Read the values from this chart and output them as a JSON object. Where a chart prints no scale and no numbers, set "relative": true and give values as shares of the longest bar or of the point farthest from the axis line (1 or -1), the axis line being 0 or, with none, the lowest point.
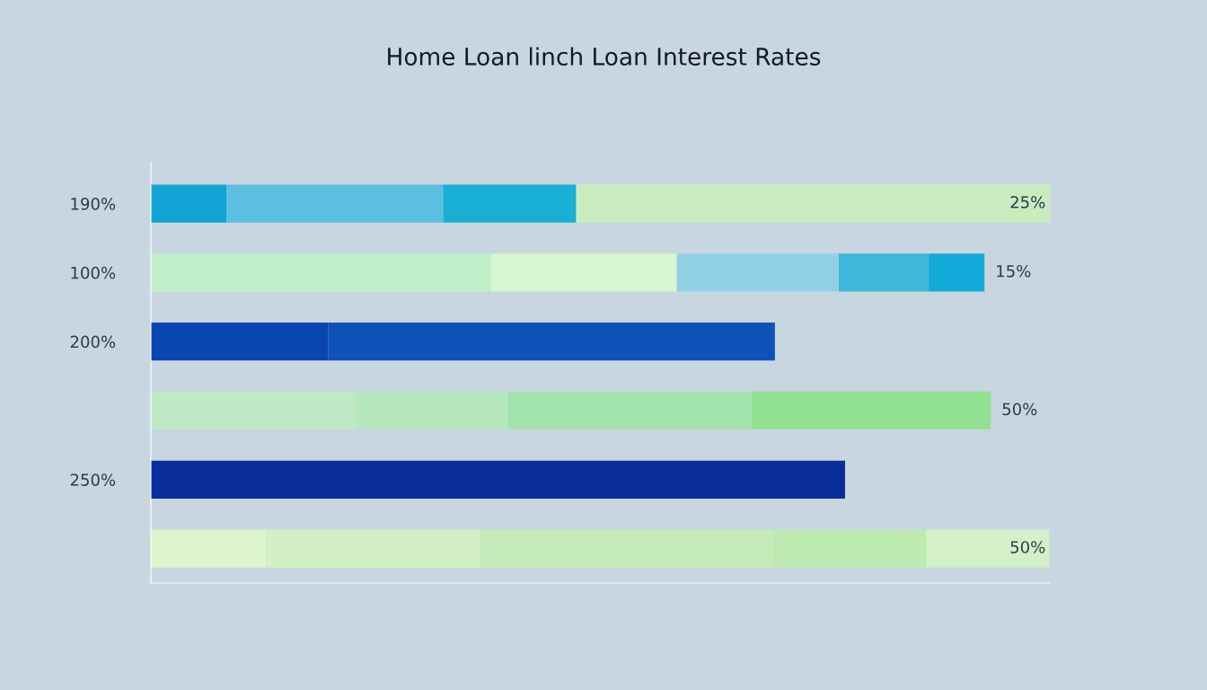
{
  "chart_data": {
    "type": "bar",
    "orientation": "horizontal",
    "stacked": true,
    "relative": true,
    "title": "Home Loan linch Loan Interest Rates",
    "categories": [
      "190%",
      "100%",
      "200%",
      null,
      "250%",
      null
    ],
    "series": [
      {
        "colors": [
          "#12a4d4",
          "#bfeec9",
          "#0a46b0",
          "#bfe9c4",
          "#0a2e9c",
          "#dcf5cc"
        ],
        "values": [
          0.084,
          0.378,
          0.197,
          0.228,
          0.772,
          0.128
        ]
      },
      {
        "colors": [
          "#5bbfe0",
          "#d6f7d0",
          "#0e52b8",
          "#b5e8bd",
          null,
          "#d2f0c3"
        ],
        "values": [
          0.241,
          0.207,
          0.497,
          0.169,
          null,
          0.238
        ]
      },
      {
        "colors": [
          "#1ab0d5",
          "#92d0e6",
          null,
          "#a3e3ad",
          null,
          "#c4ebb8"
        ],
        "values": [
          0.148,
          0.18,
          null,
          0.271,
          null,
          0.327
        ]
      },
      {
        "colors": [
          "#c9ecbf",
          "#3eb7d9",
          null,
          "#92e190",
          null,
          "#bdeab1"
        ],
        "values": [
          0.527,
          0.1,
          null,
          0.266,
          null,
          0.169
        ]
      },
      {
        "colors": [
          null,
          "#12aad8",
          null,
          null,
          null,
          "#d3f0c8"
        ],
        "values": [
          null,
          0.062,
          null,
          null,
          null,
          0.137
        ]
      }
    ],
    "value_labels": [
      "25%",
      "15%",
      null,
      "50%",
      null,
      "50%"
    ],
    "grid": false,
    "legend": false
  }
}
